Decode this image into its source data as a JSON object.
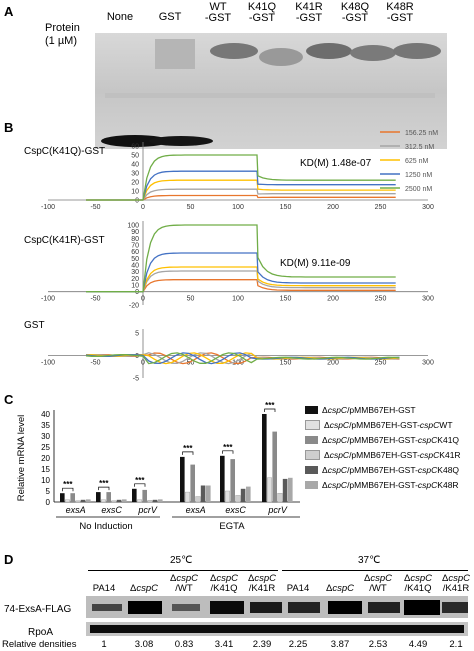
{
  "panelA": {
    "letter": "A",
    "protein_label_1": "Protein",
    "protein_label_2": "(1 µM)",
    "lanes": [
      {
        "l1": "None",
        "l2": ""
      },
      {
        "l1": "GST",
        "l2": ""
      },
      {
        "l1": "WT",
        "l2": "-GST"
      },
      {
        "l1": "K41Q",
        "l2": "-GST"
      },
      {
        "l1": "K41R",
        "l2": "-GST"
      },
      {
        "l1": "K48Q",
        "l2": "-GST"
      },
      {
        "l1": "K48R",
        "l2": "-GST"
      }
    ]
  },
  "panelB": {
    "letter": "B",
    "x_ticks": [
      "-100",
      "-50",
      "0",
      "50",
      "100",
      "150",
      "200",
      "250",
      "300"
    ],
    "legend": [
      "156.25 nM",
      "312.5 nM",
      "625 nM",
      "1250 nM",
      "2500 nM"
    ],
    "colors": [
      "#e8762d",
      "#a5a5a5",
      "#ffc000",
      "#4472c4",
      "#70ad47"
    ],
    "plot1": {
      "label": "CspC(K41Q)-GST",
      "kd": "KD(M) 1.48e-07",
      "y_ticks": [
        "0",
        "10",
        "20",
        "30",
        "40",
        "50",
        "60"
      ],
      "plateau": [
        5,
        12,
        22,
        32,
        50
      ],
      "dissoc": [
        3,
        7,
        11,
        17,
        22
      ]
    },
    "plot2": {
      "label": "CspC(K41R)-GST",
      "kd": "KD(M) 9.11e-09",
      "y_ticks": [
        "-20",
        "0",
        "10",
        "20",
        "30",
        "40",
        "50",
        "60",
        "70",
        "80",
        "90",
        "100"
      ],
      "plateau": [
        18,
        31,
        37,
        58,
        100
      ],
      "dissoc": [
        2,
        6,
        9,
        13,
        22
      ]
    },
    "plot3": {
      "label": "GST",
      "y_ticks": [
        "5",
        "0",
        "-5"
      ]
    }
  },
  "panelC": {
    "letter": "C",
    "ylabel": "Relative mRNA level",
    "y_ticks": [
      "0",
      "5",
      "10",
      "15",
      "20",
      "25",
      "30",
      "35",
      "40"
    ],
    "groups": [
      "exsA",
      "exsC",
      "pcrV",
      "exsA",
      "exsC",
      "pcrV"
    ],
    "conditions": [
      "No Induction",
      "EGTA"
    ],
    "sig": "***",
    "chart_data": {
      "type": "bar",
      "categories": [
        "exsA (No Induction)",
        "exsC (No Induction)",
        "pcrV (No Induction)",
        "exsA (EGTA)",
        "exsC (EGTA)",
        "pcrV (EGTA)"
      ],
      "ylim": [
        0,
        40
      ],
      "series": [
        {
          "name": "ΔcspC/pMMB67EH-GST",
          "color": "#111111",
          "values": [
            4,
            4.5,
            6,
            20.5,
            21,
            40
          ]
        },
        {
          "name": "ΔcspC/pMMB67EH-GST-cspC WT",
          "color": "#e0e0e0",
          "values": [
            1,
            1,
            1,
            4.5,
            5,
            11
          ]
        },
        {
          "name": "ΔcspC/pMMB67EH-GST-cspC K41Q",
          "color": "#8a8a8a",
          "values": [
            4,
            4.5,
            5.5,
            17,
            19.5,
            32
          ]
        },
        {
          "name": "ΔcspC/pMMB67EH-GST-cspC K41R",
          "color": "#cfcfcf",
          "values": [
            0.6,
            0.6,
            0.8,
            2.5,
            3,
            4
          ]
        },
        {
          "name": "ΔcspC/pMMB67EH-GST-cspC K48Q",
          "color": "#5a5a5a",
          "values": [
            1,
            1,
            1,
            7.5,
            6,
            10.5
          ]
        },
        {
          "name": "ΔcspC/pMMB67EH-GST-cspC K48R",
          "color": "#a8a8a8",
          "values": [
            1.2,
            1.2,
            1.2,
            7.5,
            7,
            11
          ]
        }
      ]
    },
    "legend": [
      {
        "pre": "Δ",
        "it": "cspC",
        "mid": "/pMMB67EH-GST",
        "it2": "",
        "post": ""
      },
      {
        "pre": "Δ",
        "it": "cspC",
        "mid": "/pMMB67EH-GST-",
        "it2": "cspC",
        "post": " WT"
      },
      {
        "pre": "Δ",
        "it": "cspC",
        "mid": "/pMMB67EH-GST-",
        "it2": "cspC",
        "post": " K41Q"
      },
      {
        "pre": "Δ",
        "it": "cspC",
        "mid": "/pMMB67EH-GST-",
        "it2": "cspC",
        "post": " K41R"
      },
      {
        "pre": "Δ",
        "it": "cspC",
        "mid": "/pMMB67EH-GST-",
        "it2": "cspC",
        "post": " K48Q"
      },
      {
        "pre": "Δ",
        "it": "cspC",
        "mid": "/pMMB67EH-GST-",
        "it2": "cspC",
        "post": " K48R"
      }
    ]
  },
  "panelD": {
    "letter": "D",
    "temp1": "25℃",
    "temp2": "37℃",
    "lanes": [
      {
        "l1": "",
        "l2": "PA14"
      },
      {
        "l1": "",
        "l2": "ΔcspC"
      },
      {
        "l1": "ΔcspC",
        "l2": "/WT"
      },
      {
        "l1": "ΔcspC",
        "l2": "/K41Q"
      },
      {
        "l1": "ΔcspC",
        "l2": "/K41R"
      },
      {
        "l1": "",
        "l2": "PA14"
      },
      {
        "l1": "",
        "l2": "ΔcspC"
      },
      {
        "l1": "ΔcspC",
        "l2": "/WT"
      },
      {
        "l1": "ΔcspC",
        "l2": "/K41Q"
      },
      {
        "l1": "ΔcspC",
        "l2": "/K41R"
      }
    ],
    "row1": "74-ExsA-FLAG",
    "row2": "RpoA",
    "densities_label": "Relative densities",
    "densities": [
      "1",
      "3.08",
      "0.83",
      "3.41",
      "2.39",
      "2.25",
      "3.87",
      "2.53",
      "4.49",
      "2.1"
    ]
  }
}
